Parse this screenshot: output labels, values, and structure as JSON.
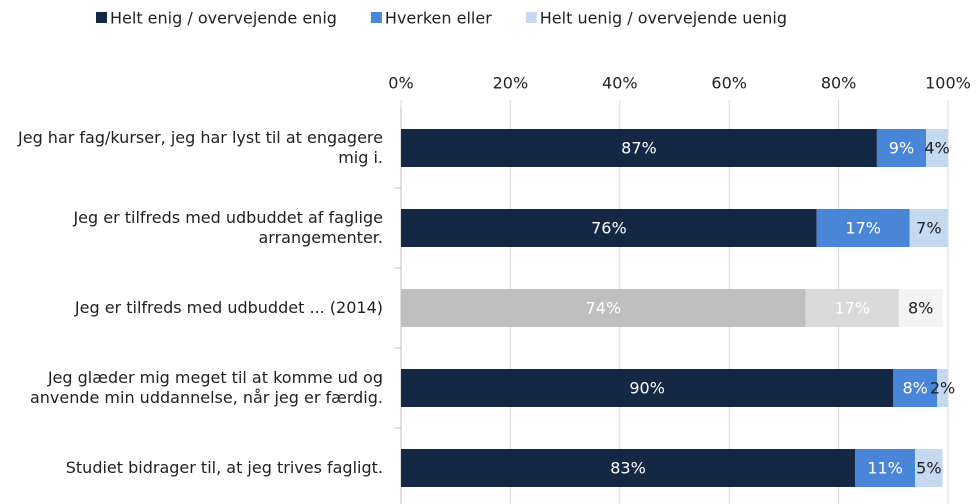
{
  "chart_data": {
    "type": "stacked-barh",
    "categories": [
      "Jeg har fag/kurser, jeg har lyst til at engagere mig i.",
      "Jeg er tilfreds med udbuddet af faglige arrangementer.",
      "Jeg er tilfreds med udbuddet ... (2014)",
      "Jeg glæder mig meget til at komme ud og anvende min uddannelse, når jeg er færdig.",
      "Studiet bidrager til, at jeg trives fagligt."
    ],
    "series": [
      {
        "name": "Helt enig / overvejende enig",
        "color": "#142744",
        "colors": [
          "#142744",
          "#142744",
          "#bfbfbf",
          "#142744",
          "#142744"
        ],
        "values": [
          87,
          76,
          74,
          90,
          83
        ],
        "value_labels": [
          "87%",
          "76%",
          "74%",
          "90%",
          "83%"
        ]
      },
      {
        "name": "Hverken eller",
        "color": "#4a86d8",
        "colors": [
          "#4a86d8",
          "#4a86d8",
          "#dadada",
          "#4a86d8",
          "#4a86d8"
        ],
        "values": [
          9,
          17,
          17,
          8,
          11
        ],
        "value_labels": [
          "9%",
          "17%",
          "17%",
          "8%",
          "11%"
        ]
      },
      {
        "name": "Helt uenig / overvejende uenig",
        "color": "#c5d9f1",
        "colors": [
          "#c5d9f1",
          "#c5d9f1",
          "#f4f4f4",
          "#c5d9f1",
          "#c5d9f1"
        ],
        "values": [
          4,
          7,
          8,
          2,
          5
        ],
        "value_labels": [
          "4%",
          "7%",
          "8%",
          "2%",
          "5%"
        ]
      }
    ],
    "xlim": [
      0,
      100
    ],
    "xticks": [
      {
        "value": 0,
        "label": "0%"
      },
      {
        "value": 20,
        "label": "20%"
      },
      {
        "value": 40,
        "label": "40%"
      },
      {
        "value": 60,
        "label": "60%"
      },
      {
        "value": 80,
        "label": "80%"
      },
      {
        "value": 100,
        "label": "100%"
      }
    ],
    "grid": true,
    "legend": "top"
  }
}
